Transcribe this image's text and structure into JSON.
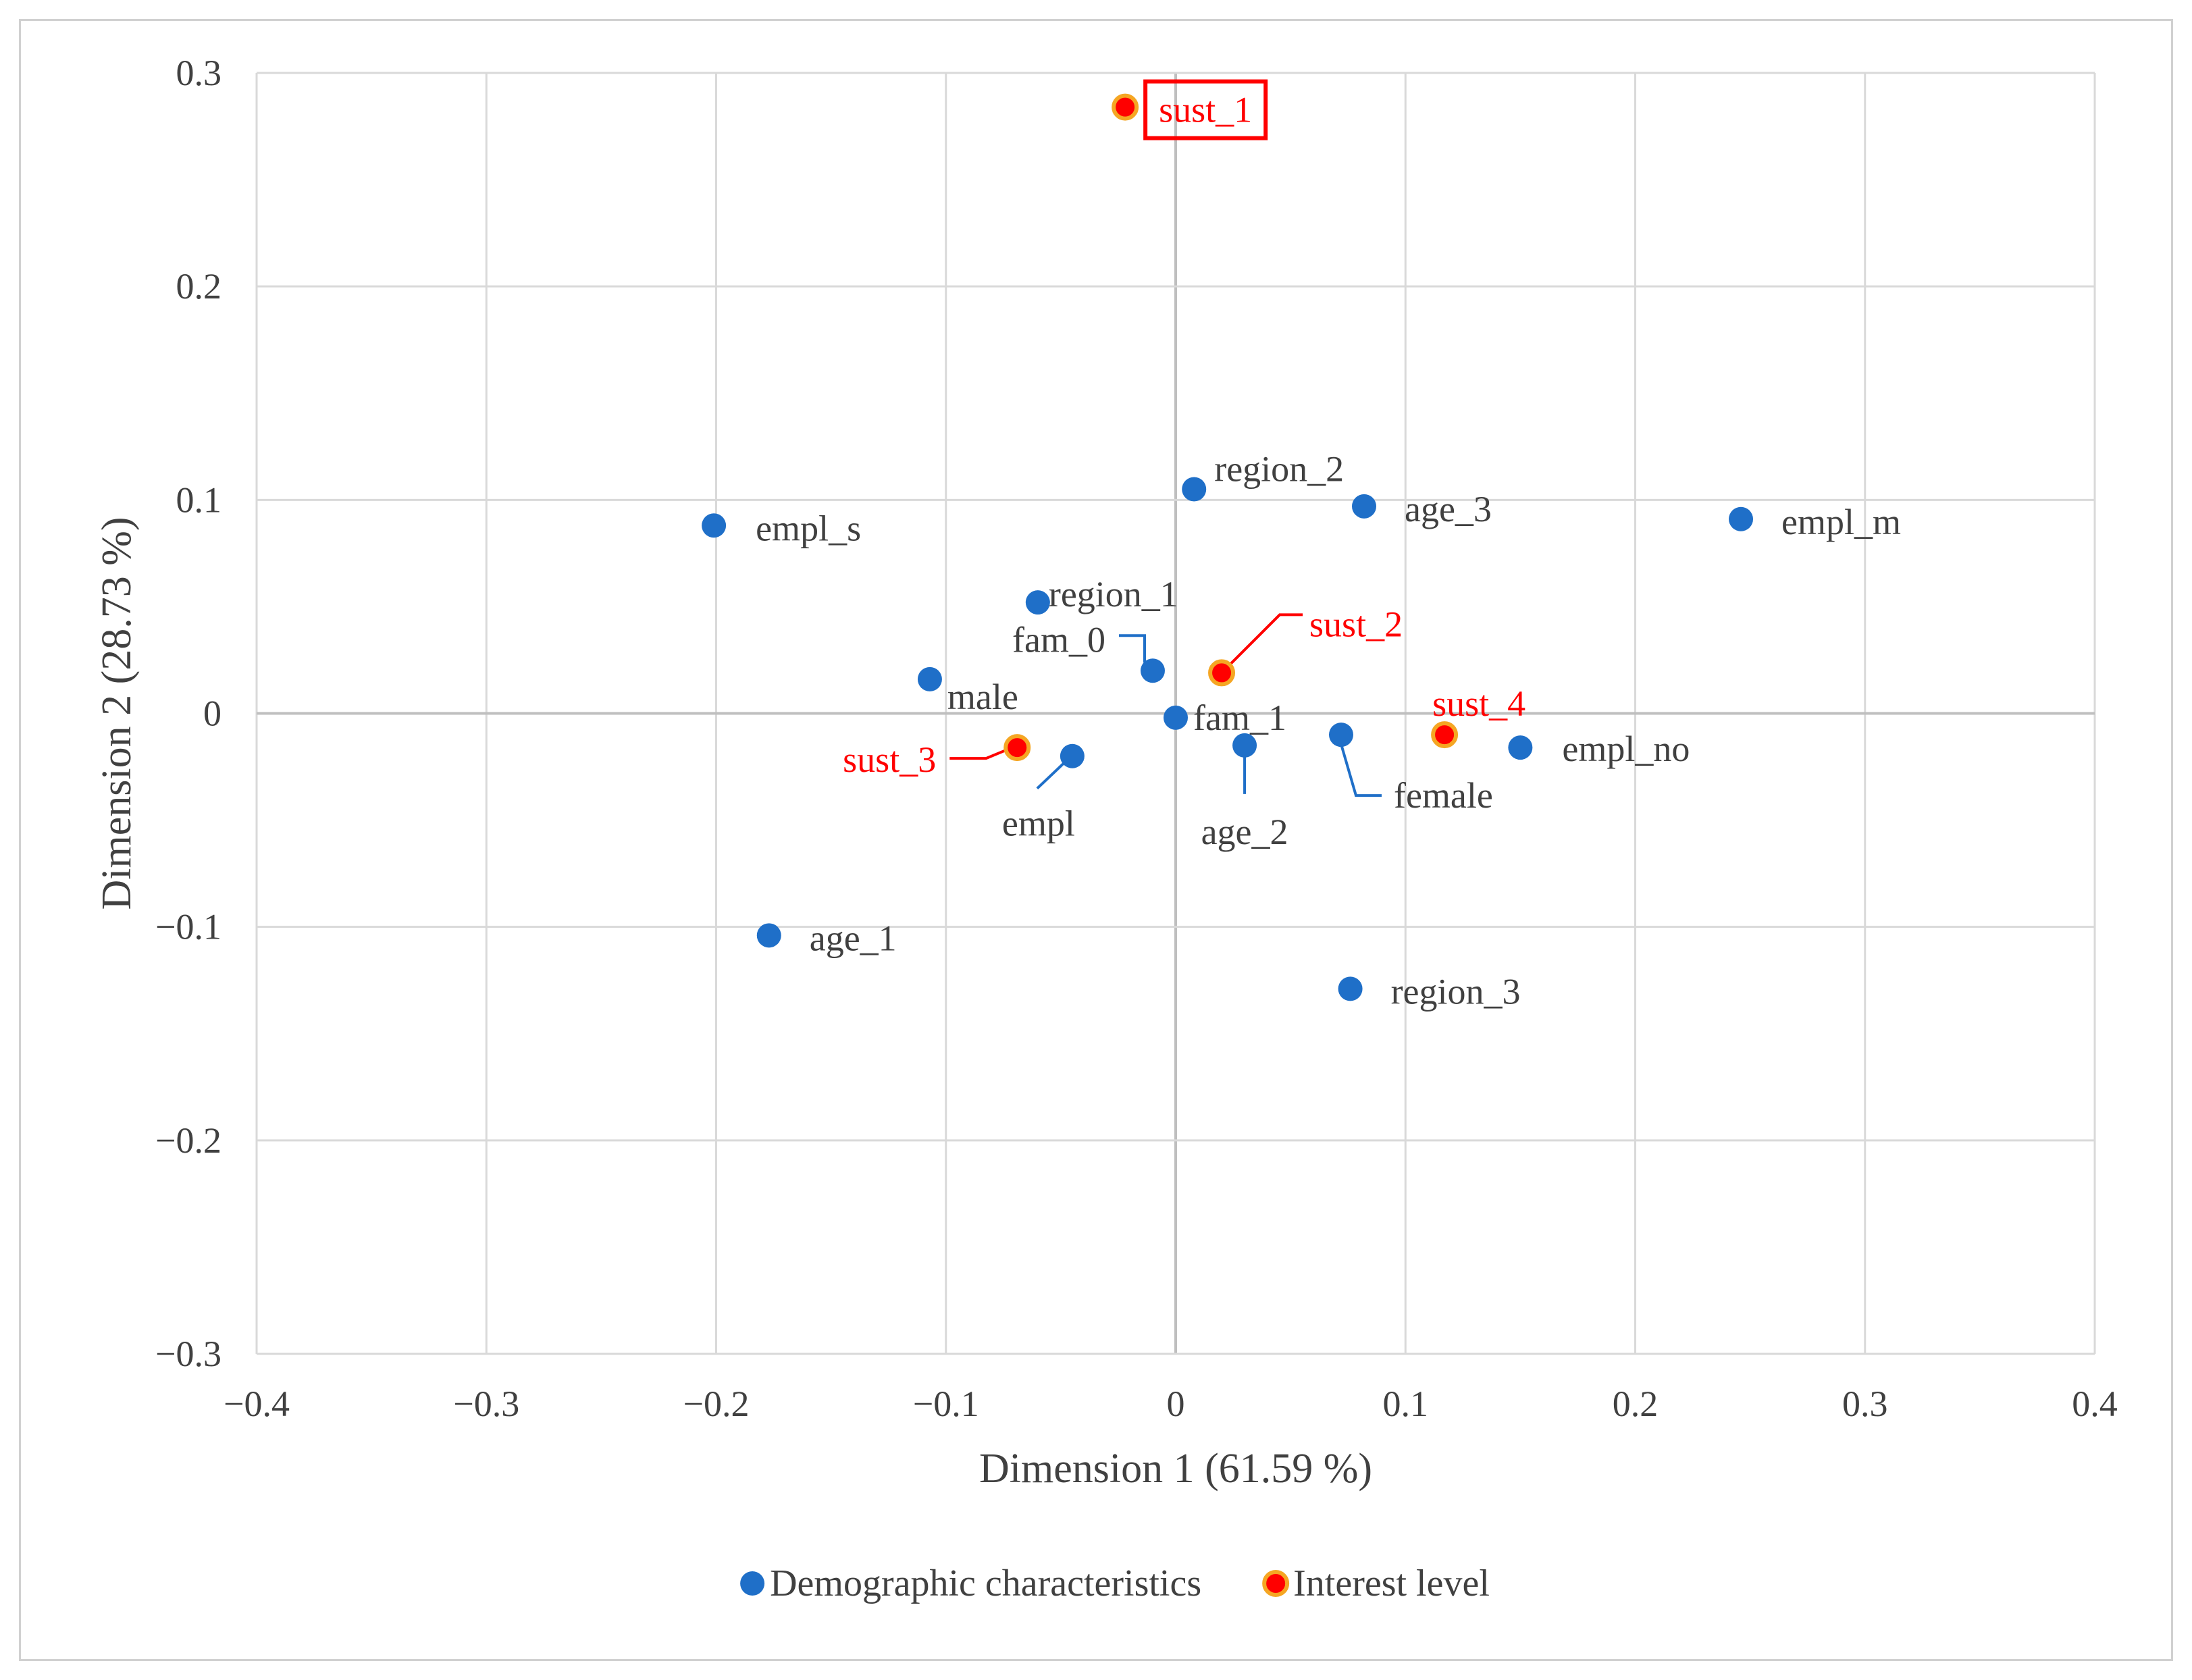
{
  "chart_data": {
    "type": "scatter",
    "title": "",
    "xlabel": "Dimension 1 (61.59 %)",
    "ylabel": "Dimension 2 (28.73 %)",
    "xlim": [
      -0.4,
      0.4
    ],
    "ylim": [
      -0.3,
      0.3
    ],
    "x_ticks": [
      -0.4,
      -0.3,
      -0.2,
      -0.1,
      0,
      0.1,
      0.2,
      0.3,
      0.4
    ],
    "y_ticks": [
      -0.3,
      -0.2,
      -0.1,
      0,
      0.1,
      0.2,
      0.3
    ],
    "x_tick_labels": [
      "−0.4",
      "−0.3",
      "−0.2",
      "−0.1",
      "0",
      "0.1",
      "0.2",
      "0.3",
      "0.4"
    ],
    "y_tick_labels": [
      "−0.3",
      "−0.2",
      "−0.1",
      "0",
      "0.1",
      "0.2",
      "0.3"
    ],
    "grid": true,
    "legend_position": "bottom",
    "series": [
      {
        "name": "Demographic characteristics",
        "color": "#1f6fc8",
        "points": [
          {
            "label": "empl_s",
            "x": -0.201,
            "y": 0.088
          },
          {
            "label": "region_2",
            "x": 0.008,
            "y": 0.105
          },
          {
            "label": "age_3",
            "x": 0.082,
            "y": 0.097
          },
          {
            "label": "empl_m",
            "x": 0.246,
            "y": 0.091
          },
          {
            "label": "region_1",
            "x": -0.06,
            "y": 0.052
          },
          {
            "label": "fam_0",
            "x": -0.01,
            "y": 0.02
          },
          {
            "label": "male",
            "x": -0.107,
            "y": 0.016
          },
          {
            "label": "fam_1",
            "x": 0.0,
            "y": -0.002
          },
          {
            "label": "empl",
            "x": -0.045,
            "y": -0.02
          },
          {
            "label": "age_2",
            "x": 0.03,
            "y": -0.015
          },
          {
            "label": "female",
            "x": 0.072,
            "y": -0.01
          },
          {
            "label": "empl_no",
            "x": 0.15,
            "y": -0.016
          },
          {
            "label": "age_1",
            "x": -0.177,
            "y": -0.104
          },
          {
            "label": "region_3",
            "x": 0.076,
            "y": -0.129
          }
        ]
      },
      {
        "name": "Interest level",
        "color": "#ff0000",
        "edge": "#f5a623",
        "points": [
          {
            "label": "sust_1",
            "x": -0.022,
            "y": 0.284
          },
          {
            "label": "sust_2",
            "x": 0.02,
            "y": 0.019
          },
          {
            "label": "sust_3",
            "x": -0.069,
            "y": -0.016
          },
          {
            "label": "sust_4",
            "x": 0.117,
            "y": -0.01
          }
        ]
      }
    ]
  }
}
